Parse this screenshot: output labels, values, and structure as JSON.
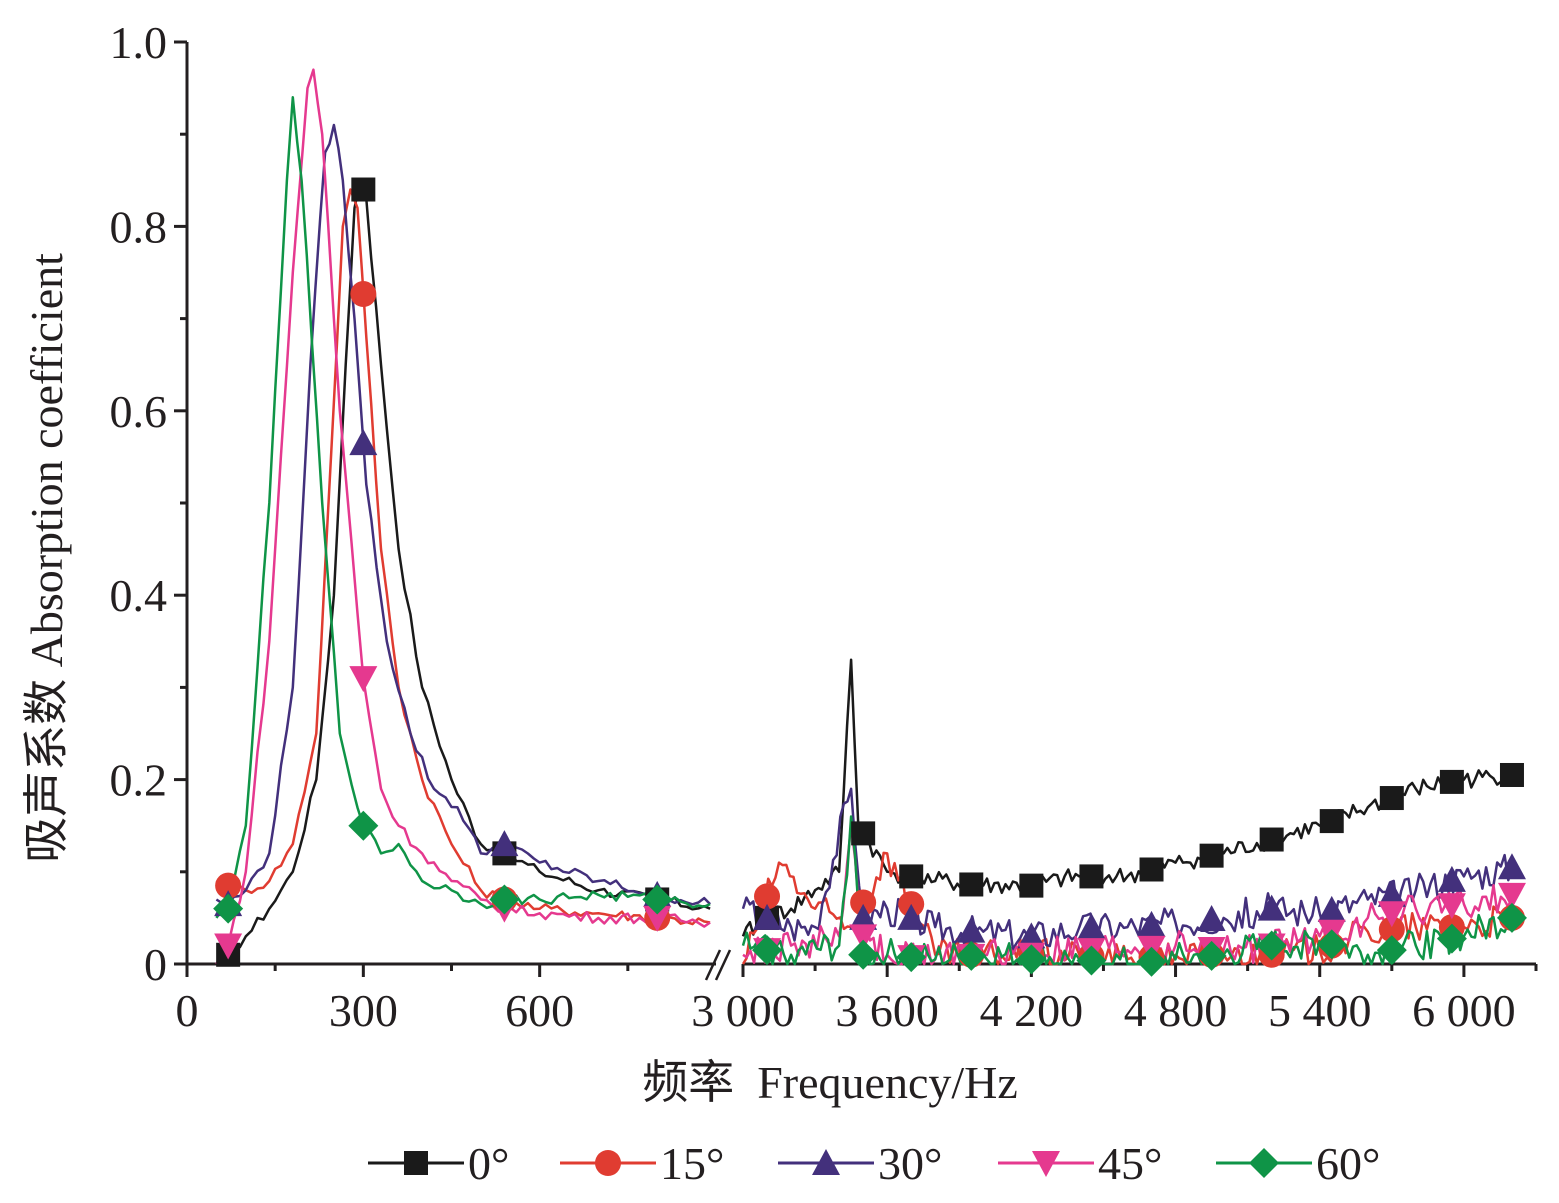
{
  "chart_data": {
    "type": "line",
    "title": "",
    "xlabel": "频率  Frequency/Hz",
    "ylabel": "吸声系数 Absorption coefficient",
    "ylim": [
      0,
      1.0
    ],
    "y_ticks": [
      0,
      0.2,
      0.4,
      0.6,
      0.8,
      1.0
    ],
    "y_tick_labels": [
      "0",
      "0.2",
      "0.4",
      "0.6",
      "0.8",
      "1.0"
    ],
    "x_break": true,
    "x_segments": [
      {
        "range": [
          0,
          900
        ],
        "ticks": [
          0,
          300,
          600
        ],
        "tick_labels": [
          "0",
          "300",
          "600"
        ]
      },
      {
        "range": [
          3000,
          6300
        ],
        "ticks": [
          3000,
          3600,
          4200,
          4800,
          5400,
          6000
        ],
        "tick_labels": [
          "3 000",
          "3 600",
          "4 200",
          "4 800",
          "5 400",
          "6 000"
        ]
      }
    ],
    "legend": {
      "position": "bottom",
      "entries": [
        "0°",
        "15°",
        "30°",
        "45°",
        "60°"
      ]
    },
    "grid": false,
    "series": [
      {
        "name": "0°",
        "color": "#1a1a1a",
        "marker": "square",
        "low": [
          [
            50,
            0
          ],
          [
            70,
            0.01
          ],
          [
            100,
            0.03
          ],
          [
            140,
            0.06
          ],
          [
            180,
            0.1
          ],
          [
            220,
            0.2
          ],
          [
            250,
            0.4
          ],
          [
            270,
            0.65
          ],
          [
            285,
            0.82
          ],
          [
            295,
            0.85
          ],
          [
            305,
            0.83
          ],
          [
            330,
            0.65
          ],
          [
            360,
            0.45
          ],
          [
            400,
            0.3
          ],
          [
            450,
            0.2
          ],
          [
            500,
            0.13
          ],
          [
            540,
            0.12
          ],
          [
            600,
            0.1
          ],
          [
            700,
            0.08
          ],
          [
            800,
            0.07
          ],
          [
            890,
            0.06
          ]
        ],
        "high": [
          [
            3000,
            0.03
          ],
          [
            3100,
            0.05
          ],
          [
            3200,
            0.06
          ],
          [
            3300,
            0.08
          ],
          [
            3400,
            0.1
          ],
          [
            3450,
            0.33
          ],
          [
            3480,
            0.15
          ],
          [
            3600,
            0.1
          ],
          [
            3800,
            0.09
          ],
          [
            4000,
            0.085
          ],
          [
            4200,
            0.085
          ],
          [
            4400,
            0.095
          ],
          [
            4600,
            0.095
          ],
          [
            4800,
            0.11
          ],
          [
            5000,
            0.12
          ],
          [
            5200,
            0.135
          ],
          [
            5400,
            0.15
          ],
          [
            5600,
            0.17
          ],
          [
            5800,
            0.19
          ],
          [
            6000,
            0.2
          ],
          [
            6200,
            0.205
          ]
        ]
      },
      {
        "name": "15°",
        "color": "#e03c31",
        "marker": "circle",
        "low": [
          [
            50,
            0.09
          ],
          [
            70,
            0.085
          ],
          [
            100,
            0.08
          ],
          [
            140,
            0.09
          ],
          [
            180,
            0.13
          ],
          [
            220,
            0.25
          ],
          [
            245,
            0.55
          ],
          [
            265,
            0.8
          ],
          [
            278,
            0.84
          ],
          [
            290,
            0.82
          ],
          [
            305,
            0.68
          ],
          [
            330,
            0.45
          ],
          [
            360,
            0.3
          ],
          [
            400,
            0.2
          ],
          [
            450,
            0.13
          ],
          [
            500,
            0.08
          ],
          [
            540,
            0.07
          ],
          [
            600,
            0.06
          ],
          [
            700,
            0.055
          ],
          [
            800,
            0.05
          ],
          [
            890,
            0.045
          ]
        ],
        "high": [
          [
            3000,
            0
          ],
          [
            3150,
            0.11
          ],
          [
            3300,
            0.06
          ],
          [
            3450,
            0.04
          ],
          [
            3600,
            0.12
          ],
          [
            3800,
            0.01
          ],
          [
            4000,
            0.01
          ],
          [
            4200,
            0.01
          ],
          [
            4400,
            0.01
          ],
          [
            4600,
            0.005
          ],
          [
            4800,
            0.01
          ],
          [
            5000,
            0.01
          ],
          [
            5200,
            0.01
          ],
          [
            5400,
            0.015
          ],
          [
            5600,
            0.035
          ],
          [
            5800,
            0.04
          ],
          [
            6000,
            0.04
          ],
          [
            6200,
            0.05
          ]
        ]
      },
      {
        "name": "30°",
        "color": "#43307c",
        "marker": "triangle-up",
        "low": [
          [
            50,
            0.07
          ],
          [
            70,
            0.065
          ],
          [
            100,
            0.08
          ],
          [
            140,
            0.12
          ],
          [
            180,
            0.3
          ],
          [
            210,
            0.65
          ],
          [
            235,
            0.88
          ],
          [
            250,
            0.91
          ],
          [
            265,
            0.85
          ],
          [
            285,
            0.7
          ],
          [
            305,
            0.52
          ],
          [
            340,
            0.35
          ],
          [
            380,
            0.25
          ],
          [
            420,
            0.19
          ],
          [
            460,
            0.17
          ],
          [
            500,
            0.12
          ],
          [
            540,
            0.13
          ],
          [
            600,
            0.11
          ],
          [
            700,
            0.09
          ],
          [
            800,
            0.075
          ],
          [
            890,
            0.065
          ]
        ],
        "high": [
          [
            3000,
            0.06
          ],
          [
            3100,
            0.05
          ],
          [
            3200,
            0.04
          ],
          [
            3300,
            0.04
          ],
          [
            3450,
            0.19
          ],
          [
            3500,
            0.05
          ],
          [
            3600,
            0.06
          ],
          [
            3800,
            0.04
          ],
          [
            4000,
            0.035
          ],
          [
            4200,
            0.03
          ],
          [
            4400,
            0.04
          ],
          [
            4600,
            0.04
          ],
          [
            4800,
            0.045
          ],
          [
            5000,
            0.05
          ],
          [
            5200,
            0.06
          ],
          [
            5400,
            0.055
          ],
          [
            5600,
            0.07
          ],
          [
            5800,
            0.08
          ],
          [
            6000,
            0.095
          ],
          [
            6200,
            0.105
          ]
        ]
      },
      {
        "name": "45°",
        "color": "#e5398f",
        "marker": "triangle-down",
        "low": [
          [
            50,
            0
          ],
          [
            70,
            0.02
          ],
          [
            100,
            0.1
          ],
          [
            140,
            0.35
          ],
          [
            180,
            0.75
          ],
          [
            205,
            0.95
          ],
          [
            215,
            0.97
          ],
          [
            230,
            0.9
          ],
          [
            260,
            0.6
          ],
          [
            300,
            0.31
          ],
          [
            330,
            0.19
          ],
          [
            360,
            0.15
          ],
          [
            400,
            0.12
          ],
          [
            450,
            0.09
          ],
          [
            500,
            0.07
          ],
          [
            540,
            0.06
          ],
          [
            600,
            0.055
          ],
          [
            700,
            0.05
          ],
          [
            800,
            0.05
          ],
          [
            890,
            0.045
          ]
        ],
        "high": [
          [
            3000,
            0.01
          ],
          [
            3200,
            0.02
          ],
          [
            3400,
            0.03
          ],
          [
            3450,
            0.15
          ],
          [
            3500,
            0.03
          ],
          [
            3600,
            0.01
          ],
          [
            3800,
            0.005
          ],
          [
            4000,
            0.01
          ],
          [
            4200,
            0.01
          ],
          [
            4400,
            0.015
          ],
          [
            4600,
            0.015
          ],
          [
            4800,
            0.02
          ],
          [
            5000,
            0.015
          ],
          [
            5200,
            0.02
          ],
          [
            5400,
            0.03
          ],
          [
            5600,
            0.05
          ],
          [
            5800,
            0.06
          ],
          [
            6000,
            0.065
          ],
          [
            6200,
            0.075
          ]
        ]
      },
      {
        "name": "60°",
        "color": "#0f9447",
        "marker": "diamond",
        "low": [
          [
            50,
            0.05
          ],
          [
            70,
            0.06
          ],
          [
            100,
            0.15
          ],
          [
            140,
            0.5
          ],
          [
            170,
            0.85
          ],
          [
            180,
            0.94
          ],
          [
            195,
            0.85
          ],
          [
            230,
            0.5
          ],
          [
            260,
            0.25
          ],
          [
            300,
            0.15
          ],
          [
            330,
            0.12
          ],
          [
            360,
            0.13
          ],
          [
            400,
            0.09
          ],
          [
            450,
            0.08
          ],
          [
            500,
            0.065
          ],
          [
            540,
            0.07
          ],
          [
            600,
            0.07
          ],
          [
            700,
            0.075
          ],
          [
            800,
            0.07
          ],
          [
            890,
            0.065
          ]
        ],
        "high": [
          [
            3000,
            0.02
          ],
          [
            3200,
            0.01
          ],
          [
            3400,
            0.02
          ],
          [
            3450,
            0.16
          ],
          [
            3500,
            0.01
          ],
          [
            3600,
            0.01
          ],
          [
            3800,
            0.005
          ],
          [
            4000,
            0.01
          ],
          [
            4200,
            0.005
          ],
          [
            4400,
            0.005
          ],
          [
            4600,
            0
          ],
          [
            4800,
            0.005
          ],
          [
            5000,
            0.01
          ],
          [
            5200,
            0.02
          ],
          [
            5400,
            0.025
          ],
          [
            5600,
            0.01
          ],
          [
            5800,
            0.02
          ],
          [
            6000,
            0.03
          ],
          [
            6200,
            0.05
          ]
        ]
      }
    ]
  }
}
